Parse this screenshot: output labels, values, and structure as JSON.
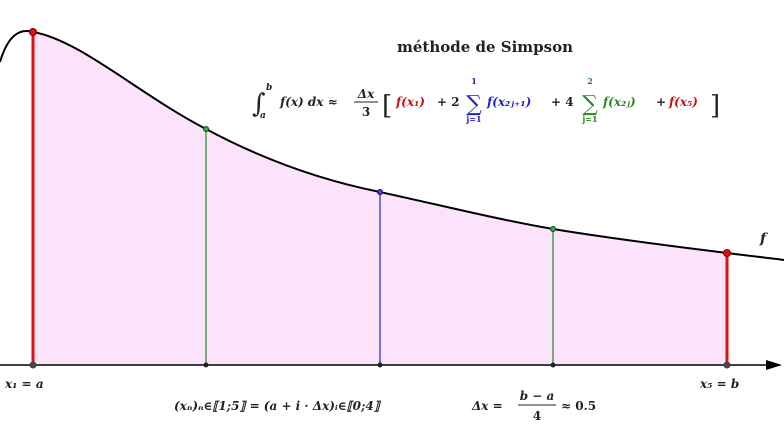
{
  "title": "méthode de Simpson",
  "function_label": "f",
  "axis_labels": {
    "left_endpoint": "x₁ = a",
    "right_endpoint": "x₅ = b"
  },
  "formula": {
    "integral": "∫ₐᵇ f(x) dx ≈ Δx/3",
    "integral_lower": "a",
    "integral_upper": "b",
    "integrand": "f(x) dx ≈",
    "fraction_num": "Δx",
    "fraction_den": "3",
    "term_first": "f(x₁)",
    "plus_two": "+ 2",
    "sum1_upper": "1",
    "sum1_lower": "j=1",
    "sum1_term": "f(x₂ⱼ₊₁)",
    "plus_four": "+ 4",
    "sum2_upper": "2",
    "sum2_lower": "j=1",
    "sum2_term": "f(x₂ⱼ)",
    "plus_last": "+",
    "term_last": "f(x₅)"
  },
  "sequence_definition": "(xₙ)ₙ∈⟦1;5⟧ = (a + i · Δx)ᵢ∈⟦0;4⟧",
  "step_definition": {
    "lhs": "Δx =",
    "num": "b − a",
    "den": "4",
    "rhs": "≈ 0.5"
  },
  "colors": {
    "fill": "#fbe4fb",
    "curve": "#000000",
    "endpoint": "#dd1111",
    "even_nodes": "#228822",
    "odd_nodes": "#2222cc"
  }
}
